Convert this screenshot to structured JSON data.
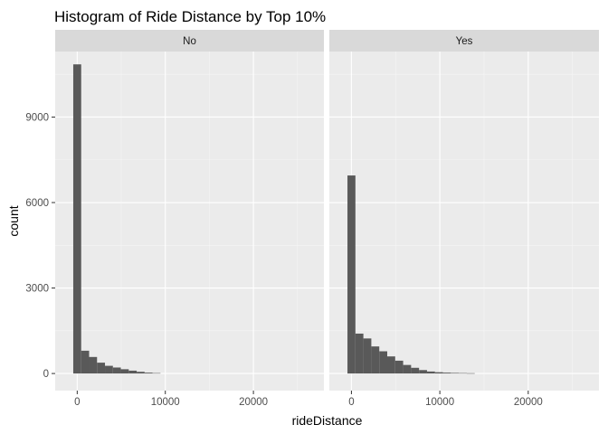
{
  "chart_data": {
    "type": "bar",
    "title": "Histogram of Ride Distance by Top 10%",
    "xlabel": "rideDistance",
    "ylabel": "count",
    "xlim": [
      -2500,
      28000
    ],
    "ylim": [
      -600,
      11300
    ],
    "x_ticks": [
      0,
      10000,
      20000
    ],
    "y_ticks": [
      0,
      3000,
      6000,
      9000
    ],
    "bin_width": 900,
    "grid": true,
    "legend": "none",
    "colors": {
      "bar": "#595959",
      "panel_bg": "#ebebeb",
      "strip_bg": "#d9d9d9",
      "grid_major": "#ffffff"
    },
    "panels": [
      {
        "label": "No",
        "bins": [
          {
            "x": 0,
            "count": 10850
          },
          {
            "x": 900,
            "count": 800
          },
          {
            "x": 1800,
            "count": 580
          },
          {
            "x": 2700,
            "count": 380
          },
          {
            "x": 3600,
            "count": 270
          },
          {
            "x": 4500,
            "count": 210
          },
          {
            "x": 5400,
            "count": 150
          },
          {
            "x": 6300,
            "count": 100
          },
          {
            "x": 7200,
            "count": 60
          },
          {
            "x": 8100,
            "count": 30
          },
          {
            "x": 9000,
            "count": 15
          }
        ]
      },
      {
        "label": "Yes",
        "bins": [
          {
            "x": 0,
            "count": 6950
          },
          {
            "x": 900,
            "count": 1400
          },
          {
            "x": 1800,
            "count": 1230
          },
          {
            "x": 2700,
            "count": 950
          },
          {
            "x": 3600,
            "count": 780
          },
          {
            "x": 4500,
            "count": 600
          },
          {
            "x": 5400,
            "count": 450
          },
          {
            "x": 6300,
            "count": 300
          },
          {
            "x": 7200,
            "count": 200
          },
          {
            "x": 8100,
            "count": 120
          },
          {
            "x": 9000,
            "count": 70
          },
          {
            "x": 9900,
            "count": 45
          },
          {
            "x": 10800,
            "count": 30
          },
          {
            "x": 11700,
            "count": 20
          },
          {
            "x": 12600,
            "count": 15
          },
          {
            "x": 13500,
            "count": 10
          }
        ]
      }
    ]
  }
}
